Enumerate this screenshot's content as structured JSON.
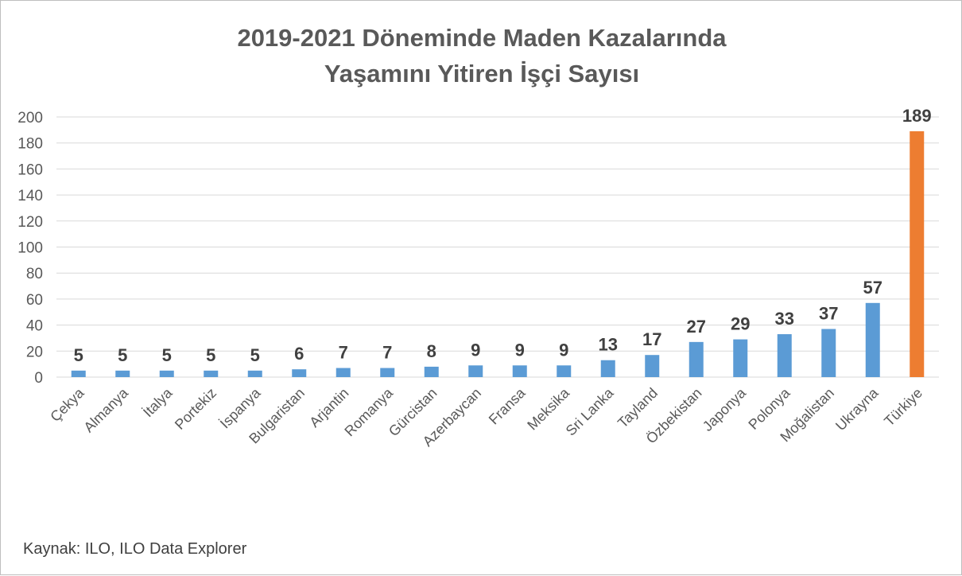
{
  "chart_data": {
    "type": "bar",
    "title": [
      "2019-2021 Döneminde Maden Kazalarında",
      "Yaşamını Yitiren İşçi Sayısı"
    ],
    "categories": [
      "Çekya",
      "Almanya",
      "İtalya",
      "Portekiz",
      "İspanya",
      "Bulgaristan",
      "Arjantin",
      "Romanya",
      "Gürcistan",
      "Azerbaycan",
      "Fransa",
      "Meksika",
      "Sri Lanka",
      "Tayland",
      "Özbekistan",
      "Japonya",
      "Polonya",
      "Moğalistan",
      "Ukrayna",
      "Türkiye"
    ],
    "values": [
      5,
      5,
      5,
      5,
      5,
      6,
      7,
      7,
      8,
      9,
      9,
      9,
      13,
      17,
      27,
      29,
      33,
      37,
      57,
      189
    ],
    "y_ticks": [
      "0",
      "20",
      "40",
      "60",
      "80",
      "100",
      "120",
      "140",
      "160",
      "180",
      "200"
    ],
    "ylim": [
      0,
      200
    ],
    "grid": true,
    "colors": {
      "default": "#5b9bd5",
      "highlight": "#ed7d31",
      "highlight_category": "Türkiye"
    }
  },
  "source": "Kaynak: ILO, ILO Data Explorer"
}
